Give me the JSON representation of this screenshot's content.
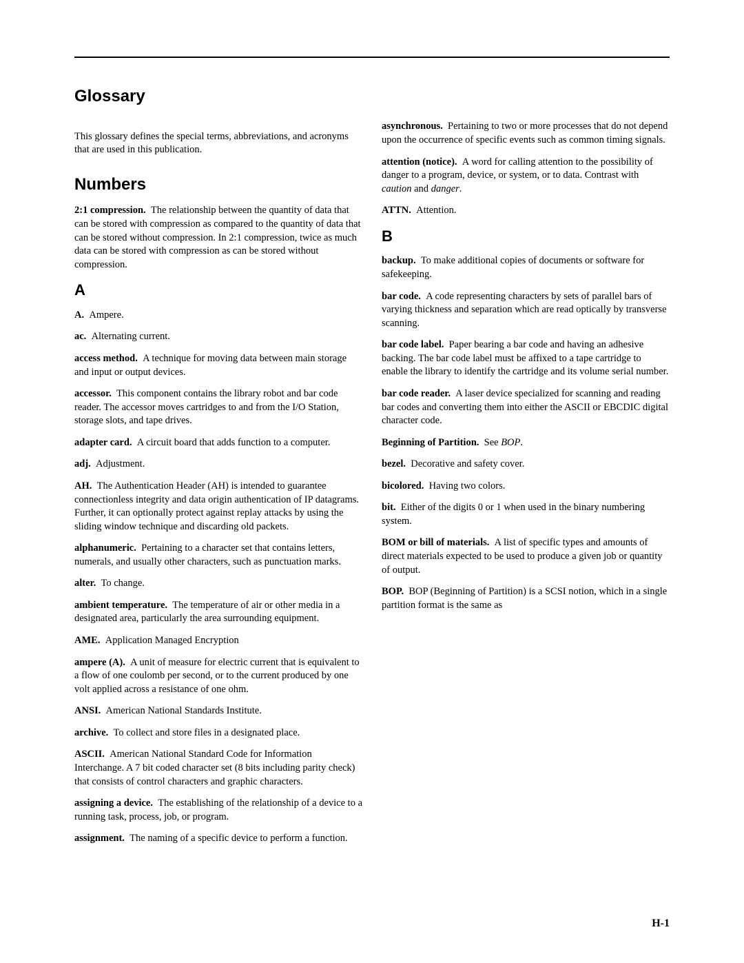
{
  "title": "Glossary",
  "intro": "This glossary defines the special terms, abbreviations, and acronyms that are used in this publication.",
  "section_numbers": "Numbers",
  "section_a": "A",
  "section_b": "B",
  "entries": {
    "e0": {
      "term": "2:1 compression.",
      "def": "The relationship between the quantity of data that can be stored with compression as compared to the quantity of data that can be stored without compression. In 2:1 compression, twice as much data can be stored with compression as can be stored without compression."
    },
    "e1": {
      "term": "A.",
      "def": "Ampere."
    },
    "e2": {
      "term": "ac.",
      "def": "Alternating current."
    },
    "e3": {
      "term": "access method.",
      "def": "A technique for moving data between main storage and input or output devices."
    },
    "e4": {
      "term": "accessor.",
      "def": "This component contains the library robot and bar code reader. The accessor moves cartridges to and from the I/O Station, storage slots, and tape drives."
    },
    "e5": {
      "term": "adapter card.",
      "def": "A circuit board that adds function to a computer."
    },
    "e6": {
      "term": "adj.",
      "def": "Adjustment."
    },
    "e7": {
      "term": "AH.",
      "def": "The Authentication Header (AH) is intended to guarantee connectionless integrity and data origin authentication of IP datagrams. Further, it can optionally protect against replay attacks by using the sliding window technique and discarding old packets."
    },
    "e8": {
      "term": "alphanumeric.",
      "def": "Pertaining to a character set that contains letters, numerals, and usually other characters, such as punctuation marks."
    },
    "e9": {
      "term": "alter.",
      "def": "To change."
    },
    "e10": {
      "term": "ambient temperature.",
      "def": "The temperature of air or other media in a designated area, particularly the area surrounding equipment."
    },
    "e11": {
      "term": "AME.",
      "def": "Application Managed Encryption"
    },
    "e12": {
      "term": "ampere (A).",
      "def": "A unit of measure for electric current that is equivalent to a flow of one coulomb per second, or to the current produced by one volt applied across a resistance of one ohm."
    },
    "e13": {
      "term": "ANSI.",
      "def": "American National Standards Institute."
    },
    "e14": {
      "term": "archive.",
      "def": "To collect and store files in a designated place."
    },
    "e15": {
      "term": "ASCII.",
      "def": "American National Standard Code for Information Interchange. A 7 bit coded character set (8 bits including parity check) that consists of control characters and graphic characters."
    },
    "e16": {
      "term": "assigning a device.",
      "def": "The establishing of the relationship of a device to a running task, process, job, or program."
    },
    "e17": {
      "term": "assignment.",
      "def": "The naming of a specific device to perform a function."
    },
    "e18": {
      "term": "asynchronous.",
      "def": "Pertaining to two or more processes that do not depend upon the occurrence of specific events such as common timing signals."
    },
    "e19": {
      "term": "attention (notice).",
      "def_pre": "A word for calling attention to the possibility of danger to a program, device, or system, or to data. Contrast with ",
      "i1": "caution",
      "mid": " and ",
      "i2": "danger",
      "tail": "."
    },
    "e20": {
      "term": "ATTN.",
      "def": "Attention."
    },
    "e21": {
      "term": "backup.",
      "def": "To make additional copies of documents or software for safekeeping."
    },
    "e22": {
      "term": "bar code.",
      "def": "A code representing characters by sets of parallel bars of varying thickness and separation which are read optically by transverse scanning."
    },
    "e23": {
      "term": "bar code label.",
      "def": "Paper bearing a bar code and having an adhesive backing. The bar code label must be affixed to a tape cartridge to enable the library to identify the cartridge and its volume serial number."
    },
    "e24": {
      "term": "bar code reader.",
      "def": "A laser device specialized for scanning and reading bar codes and converting them into either the ASCII or EBCDIC digital character code."
    },
    "e25": {
      "term": "Beginning of Partition.",
      "def_pre": "See ",
      "i1": "BOP",
      "tail": "."
    },
    "e26": {
      "term": "bezel.",
      "def": "Decorative and safety cover."
    },
    "e27": {
      "term": "bicolored.",
      "def": "Having two colors."
    },
    "e28": {
      "term": "bit.",
      "def": "Either of the digits 0 or 1 when used in the binary numbering system."
    },
    "e29": {
      "term": "BOM or bill of materials.",
      "def": "A list of specific types and amounts of direct materials expected to be used to produce a given job or quantity of output."
    },
    "e30": {
      "term": "BOP.",
      "def": "BOP (Beginning of Partition) is a SCSI notion, which in a single partition format is the same as"
    }
  },
  "footer": "H-1"
}
